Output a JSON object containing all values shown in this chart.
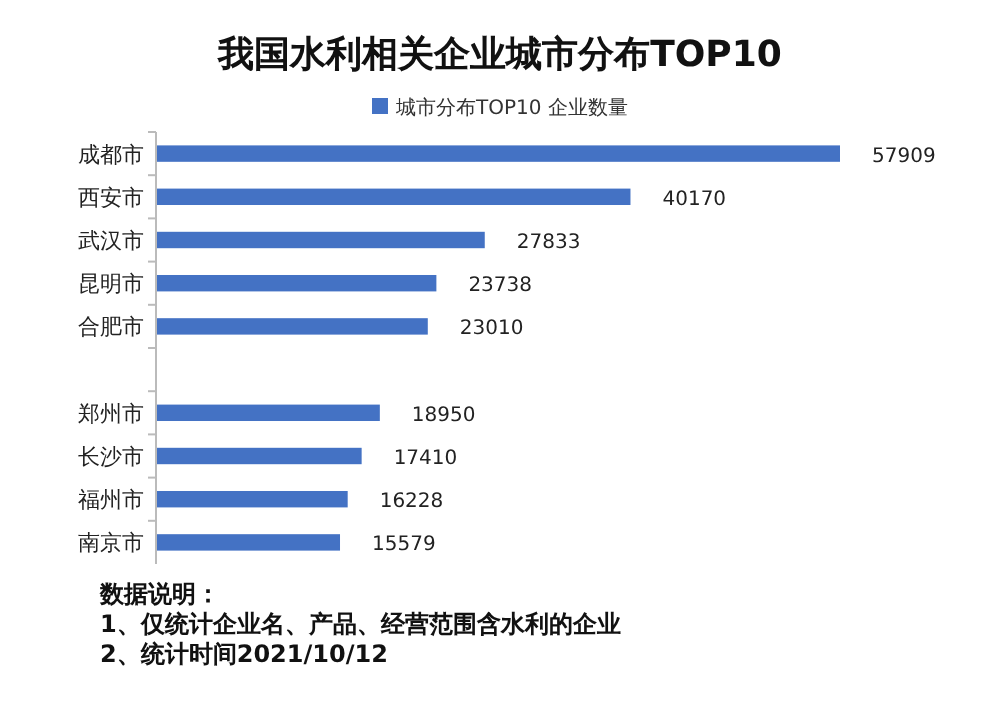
{
  "chart_data": {
    "type": "bar",
    "orientation": "horizontal",
    "title": "我国水利相关企业城市分布TOP10",
    "categories": [
      "成都市",
      "西安市",
      "武汉市",
      "昆明市",
      "合肥市",
      null,
      "郑州市",
      "长沙市",
      "福州市",
      "南京市"
    ],
    "series": [
      {
        "name": "城市分布TOP10 企业数量",
        "color": "#4472c4",
        "values": [
          57909,
          40170,
          27833,
          23738,
          23010,
          null,
          18950,
          17410,
          16228,
          15579
        ]
      }
    ],
    "data_labels": true,
    "legend": "top",
    "annotations": [
      "数据说明：",
      "1、仅统计企业名、产品、经营范围含水利的企业",
      "2、统计时间2021/10/12"
    ]
  }
}
